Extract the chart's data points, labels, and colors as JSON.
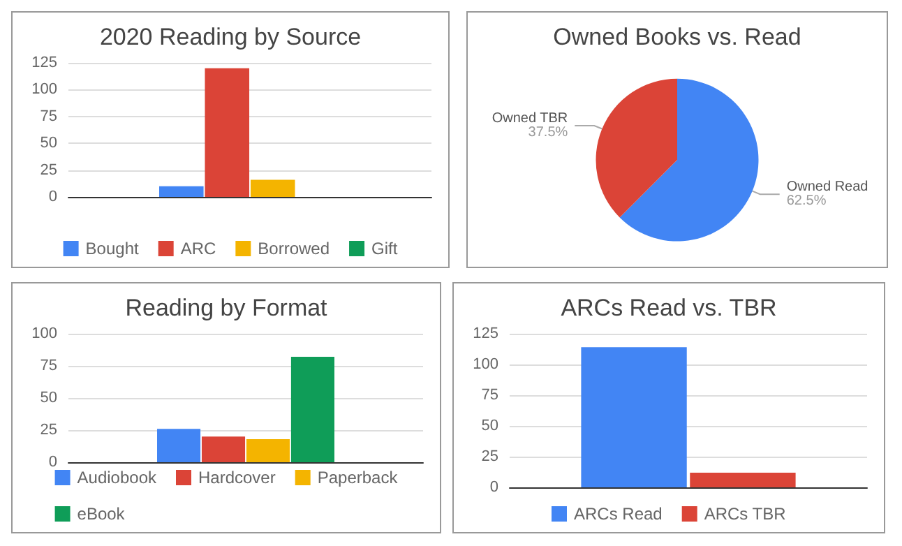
{
  "chart_data": [
    {
      "type": "bar",
      "title": "2020 Reading by Source",
      "categories": [
        null
      ],
      "series": [
        {
          "name": "Bought",
          "color": "#4285f4",
          "values": [
            10
          ]
        },
        {
          "name": "ARC",
          "color": "#db4437",
          "values": [
            120
          ]
        },
        {
          "name": "Borrowed",
          "color": "#f4b400",
          "values": [
            16
          ]
        },
        {
          "name": "Gift",
          "color": "#0f9d58",
          "values": [
            0
          ]
        }
      ],
      "ylim": [
        0,
        125
      ],
      "yticks": [
        0,
        25,
        50,
        75,
        100,
        125
      ],
      "grid": "y",
      "legend": "bottom"
    },
    {
      "type": "pie",
      "title": "Owned Books vs. Read",
      "categories": [
        "Owned Read",
        "Owned TBR"
      ],
      "values": [
        62.5,
        37.5
      ],
      "value_labels": [
        "62.5%",
        "37.5%"
      ],
      "colors": [
        "#4285f4",
        "#db4437"
      ],
      "legend": false
    },
    {
      "type": "bar",
      "title": "Reading by Format",
      "categories": [
        null
      ],
      "series": [
        {
          "name": "Audiobook",
          "color": "#4285f4",
          "values": [
            26
          ]
        },
        {
          "name": "Hardcover",
          "color": "#db4437",
          "values": [
            20
          ]
        },
        {
          "name": "Paperback",
          "color": "#f4b400",
          "values": [
            18
          ]
        },
        {
          "name": "eBook",
          "color": "#0f9d58",
          "values": [
            82
          ]
        }
      ],
      "ylim": [
        0,
        100
      ],
      "yticks": [
        0,
        25,
        50,
        75,
        100
      ],
      "grid": "y",
      "legend": "bottom"
    },
    {
      "type": "bar",
      "title": "ARCs Read vs. TBR",
      "categories": [
        null
      ],
      "series": [
        {
          "name": "ARCs Read",
          "color": "#4285f4",
          "values": [
            114
          ]
        },
        {
          "name": "ARCs TBR",
          "color": "#db4437",
          "values": [
            12
          ]
        }
      ],
      "ylim": [
        0,
        125
      ],
      "yticks": [
        0,
        25,
        50,
        75,
        100,
        125
      ],
      "grid": "y",
      "legend": "bottom"
    }
  ]
}
